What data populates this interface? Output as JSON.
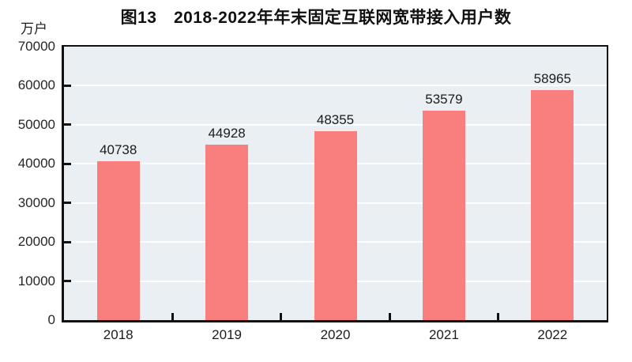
{
  "title": "图13　2018-2022年年末固定互联网宽带接入用户数",
  "unit_label": "万户",
  "chart_data": {
    "type": "bar",
    "title": "图13　2018-2022年年末固定互联网宽带接入用户数",
    "categories": [
      "2018",
      "2019",
      "2020",
      "2021",
      "2022"
    ],
    "values": [
      40738,
      44928,
      48355,
      53579,
      58965
    ],
    "data_labels": [
      "40738",
      "44928",
      "48355",
      "53579",
      "58965"
    ],
    "xlabel": "",
    "ylabel": "万户",
    "ylim": [
      0,
      70000
    ],
    "yticks": [
      0,
      10000,
      20000,
      30000,
      40000,
      50000,
      60000,
      70000
    ],
    "ytick_labels": [
      "0",
      "10000",
      "20000",
      "30000",
      "40000",
      "50000",
      "60000",
      "70000"
    ],
    "grid": "horizontal",
    "legend": "none",
    "colors": {
      "bar_fill": "#f97e7e",
      "plot_background": "#e9eff2",
      "grid_line": "#fbfdfe",
      "axis_frame": "#111111",
      "text": "#1c1c1c",
      "page_background": "#ffffff"
    }
  }
}
